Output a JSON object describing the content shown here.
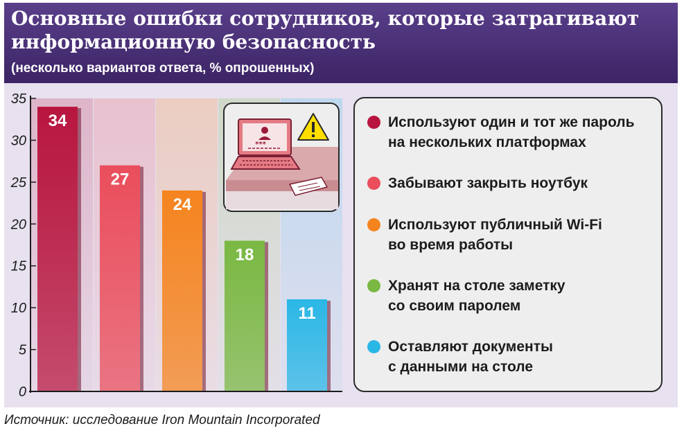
{
  "title": "Основные ошибки сотрудников, которые затрагивают информационную безопасность",
  "subtitle": "(несколько вариантов ответа, % опрошенных)",
  "source": "Источник: исследование Iron Mountain Incorporated",
  "chart_data": {
    "type": "bar",
    "categories": [
      "Используют один и тот же пароль на нескольких платформах",
      "Забывают закрыть ноутбук",
      "Используют публичный Wi-Fi во время работы",
      "Хранят на столе заметку со своим паролем",
      "Оставляют документы с данными на столе"
    ],
    "values": [
      34,
      27,
      24,
      18,
      11
    ],
    "value_labels": [
      "34",
      "27",
      "24",
      "18",
      "11"
    ],
    "colors": [
      "#b8163f",
      "#ea4e5c",
      "#f5841f",
      "#7ab842",
      "#2bb7e6"
    ],
    "ylim": [
      0,
      35
    ],
    "yticks": [
      0,
      5,
      10,
      15,
      20,
      25,
      30,
      35
    ],
    "ytick_labels": [
      "0",
      "5",
      "10",
      "15",
      "20",
      "25",
      "30",
      "35"
    ],
    "grid": false,
    "legend_placement": "right"
  },
  "legend": [
    {
      "lines": [
        "Используют один и тот же пароль",
        "на нескольких платформах"
      ],
      "color": "#b8163f"
    },
    {
      "lines": [
        "Забывают закрыть ноутбук"
      ],
      "color": "#ea4e5c"
    },
    {
      "lines": [
        "Используют публичный Wi-Fi",
        "во время работы"
      ],
      "color": "#f5841f"
    },
    {
      "lines": [
        "Хранят на столе заметку",
        "со своим паролем"
      ],
      "color": "#7ab842"
    },
    {
      "lines": [
        "Оставляют документы",
        "с данными на столе"
      ],
      "color": "#2bb7e6"
    }
  ],
  "illustration": {
    "icon": "laptop-warning-icon",
    "password_mask": "***"
  }
}
